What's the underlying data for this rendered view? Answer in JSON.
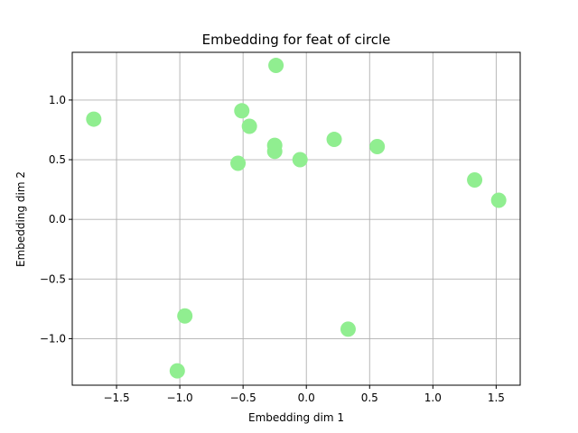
{
  "chart_data": {
    "type": "scatter",
    "title": "Embedding for feat of circle",
    "xlabel": "Embedding dim 1",
    "ylabel": "Embedding dim 2",
    "xlim": [
      -1.85,
      1.69
    ],
    "ylim": [
      -1.39,
      1.4
    ],
    "xticks": [
      -1.5,
      -1.0,
      -0.5,
      0.0,
      0.5,
      1.0,
      1.5
    ],
    "xtick_labels": [
      "−1.5",
      "−1.0",
      "−0.5",
      "0.0",
      "0.5",
      "1.0",
      "1.5"
    ],
    "yticks": [
      -1.0,
      -0.5,
      0.0,
      0.5,
      1.0
    ],
    "ytick_labels": [
      "−1.0",
      "−0.5",
      "0.0",
      "0.5",
      "1.0"
    ],
    "grid": true,
    "marker_color": "#90ee90",
    "points": [
      {
        "x": -1.68,
        "y": 0.84
      },
      {
        "x": -0.24,
        "y": 1.29
      },
      {
        "x": -0.51,
        "y": 0.91
      },
      {
        "x": -0.45,
        "y": 0.78
      },
      {
        "x": -0.25,
        "y": 0.62
      },
      {
        "x": -0.25,
        "y": 0.57
      },
      {
        "x": -0.54,
        "y": 0.47
      },
      {
        "x": -0.05,
        "y": 0.5
      },
      {
        "x": 0.22,
        "y": 0.67
      },
      {
        "x": 0.56,
        "y": 0.61
      },
      {
        "x": 1.33,
        "y": 0.33
      },
      {
        "x": 1.52,
        "y": 0.16
      },
      {
        "x": -0.96,
        "y": -0.81
      },
      {
        "x": -1.02,
        "y": -1.27
      },
      {
        "x": 0.33,
        "y": -0.92
      }
    ]
  }
}
